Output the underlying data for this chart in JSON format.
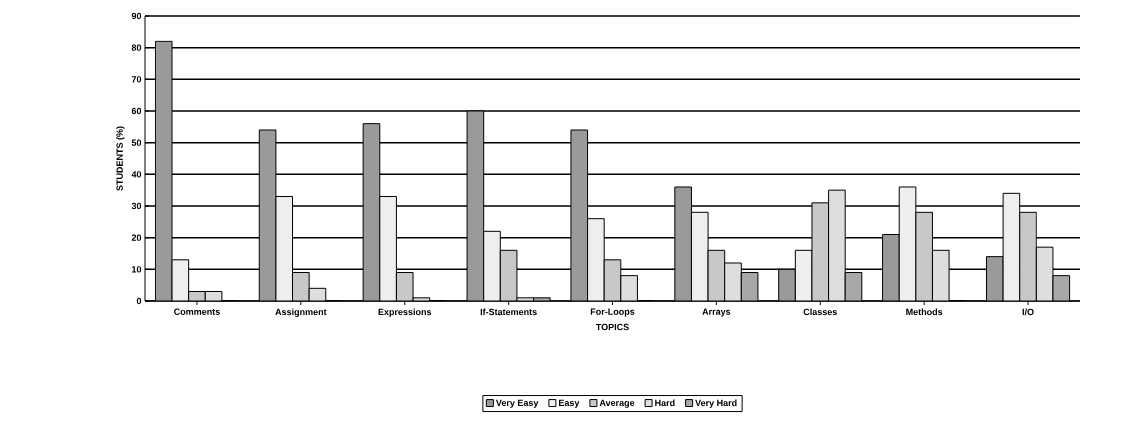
{
  "chart_data": {
    "type": "bar",
    "xlabel": "TOPICS",
    "ylabel": "STUDENTS (%)",
    "categories": [
      "Comments",
      "Assignment",
      "Expressions",
      "If-Statements",
      "For-Loops",
      "Arrays",
      "Classes",
      "Methods",
      "I/O"
    ],
    "series": [
      {
        "name": "Very Easy",
        "color": "#9a9a9a",
        "values": [
          82,
          54,
          56,
          60,
          54,
          36,
          10,
          21,
          14
        ]
      },
      {
        "name": "Easy",
        "color": "#eeeeee",
        "values": [
          13,
          33,
          33,
          22,
          26,
          28,
          16,
          36,
          34
        ]
      },
      {
        "name": "Average",
        "color": "#c8c8c8",
        "values": [
          3,
          9,
          9,
          16,
          13,
          16,
          31,
          28,
          28
        ]
      },
      {
        "name": "Hard",
        "color": "#dedede",
        "values": [
          3,
          4,
          1,
          1,
          8,
          12,
          35,
          16,
          17
        ]
      },
      {
        "name": "Very Hard",
        "color": "#a8a8a8",
        "values": [
          0,
          0,
          0,
          1,
          0,
          9,
          9,
          0,
          8
        ]
      }
    ],
    "ylim": [
      0,
      90
    ],
    "yticks": [
      0,
      10,
      20,
      30,
      40,
      50,
      60,
      70,
      80,
      90
    ],
    "grid": "y",
    "legend": "bottom"
  }
}
